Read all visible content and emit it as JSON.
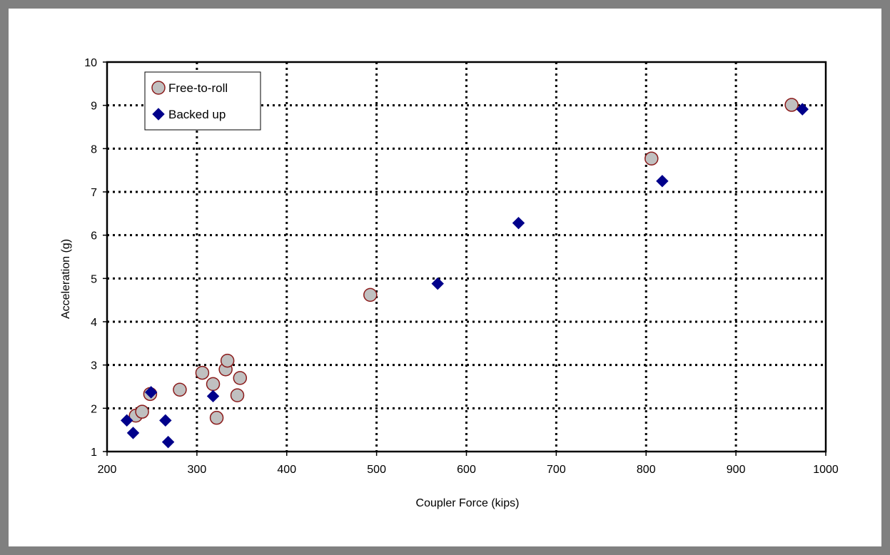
{
  "chart_data": {
    "type": "scatter",
    "title": "",
    "xlabel": "Coupler Force (kips)",
    "ylabel": "Acceleration (g)",
    "xlim": [
      200,
      1000
    ],
    "ylim": [
      1,
      10
    ],
    "xticks": [
      200,
      300,
      400,
      500,
      600,
      700,
      800,
      900,
      1000
    ],
    "yticks": [
      1,
      2,
      3,
      4,
      5,
      6,
      7,
      8,
      9,
      10
    ],
    "grid": true,
    "grid_style": "dotted",
    "legend_position": "top-left",
    "series": [
      {
        "name": "Free-to-roll",
        "marker": "circle",
        "fill": "#c0c0c0",
        "stroke": "#8b1a1a",
        "points": [
          {
            "x": 232,
            "y": 1.83
          },
          {
            "x": 239,
            "y": 1.92
          },
          {
            "x": 248,
            "y": 2.33
          },
          {
            "x": 281,
            "y": 2.43
          },
          {
            "x": 306,
            "y": 2.82
          },
          {
            "x": 318,
            "y": 2.56
          },
          {
            "x": 322,
            "y": 1.78
          },
          {
            "x": 332,
            "y": 2.9
          },
          {
            "x": 334,
            "y": 3.1
          },
          {
            "x": 345,
            "y": 2.3
          },
          {
            "x": 348,
            "y": 2.7
          },
          {
            "x": 493,
            "y": 4.62
          },
          {
            "x": 806,
            "y": 7.77
          },
          {
            "x": 962,
            "y": 9.01
          }
        ]
      },
      {
        "name": "Backed up",
        "marker": "diamond",
        "fill": "#00008b",
        "stroke": "#00008b",
        "points": [
          {
            "x": 222,
            "y": 1.72
          },
          {
            "x": 229,
            "y": 1.43
          },
          {
            "x": 249,
            "y": 2.37
          },
          {
            "x": 265,
            "y": 1.72
          },
          {
            "x": 268,
            "y": 1.22
          },
          {
            "x": 318,
            "y": 2.28
          },
          {
            "x": 568,
            "y": 4.88
          },
          {
            "x": 658,
            "y": 6.28
          },
          {
            "x": 818,
            "y": 7.25
          },
          {
            "x": 974,
            "y": 8.91
          }
        ]
      }
    ]
  }
}
